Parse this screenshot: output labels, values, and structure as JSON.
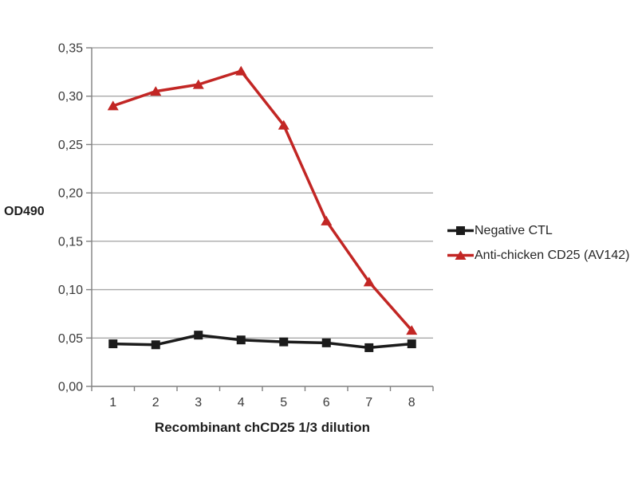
{
  "chart_data": {
    "type": "line",
    "title": "",
    "xlabel": "Recombinant chCD25 1/3 dilution",
    "ylabel": "OD490",
    "categories": [
      "1",
      "2",
      "3",
      "4",
      "5",
      "6",
      "7",
      "8"
    ],
    "series": [
      {
        "name": "Negative CTL",
        "marker": "square",
        "color": "#1b1b1b",
        "values": [
          0.044,
          0.043,
          0.053,
          0.048,
          0.046,
          0.045,
          0.04,
          0.044
        ]
      },
      {
        "name": "Anti-chicken CD25 (AV142)",
        "marker": "triangle",
        "color": "#c22624",
        "values": [
          0.29,
          0.305,
          0.312,
          0.326,
          0.27,
          0.171,
          0.108,
          0.058
        ]
      }
    ],
    "ylim": [
      0,
      0.35
    ],
    "ytick_step": 0.05,
    "ytick_labels": [
      "0,00",
      "0,05",
      "0,10",
      "0,15",
      "0,20",
      "0,25",
      "0,30",
      "0,35"
    ],
    "decimal_separator": ",",
    "grid": "horizontal",
    "legend_position": "right"
  },
  "colors": {
    "grid": "#a8a8a8",
    "axis": "#808080",
    "tick_text": "#3a3a3a",
    "background": "#ffffff"
  }
}
